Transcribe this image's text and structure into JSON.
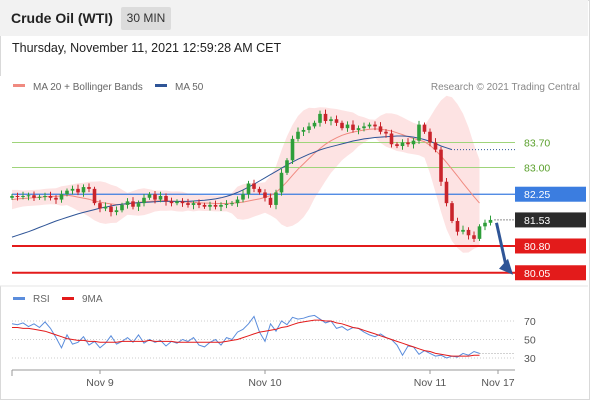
{
  "header": {
    "instrument": "Crude Oil (WTI)",
    "timeframe": "30 MIN"
  },
  "timestamp": "Thursday, November 11, 2021 12:59:28 AM CET",
  "attribution": "Research © 2021 Trading Central",
  "colors": {
    "ma20": "#f08a80",
    "bollinger_fill": "#fde3e3",
    "ma50": "#2f5597",
    "candle_up": "#2e9e3a",
    "candle_down": "#c9242b",
    "resistance": "#9fd47a",
    "pivot": "#3b7de0",
    "support": "#e31b1b",
    "rsi": "#5b8ddc",
    "rsi_ma": "#e31b1b",
    "arrow": "#2f5597"
  },
  "chart_data": [
    {
      "type": "candlestick",
      "title": "Crude Oil (WTI)",
      "timeframe": "30 MIN",
      "legend": [
        "MA 20 + Bollinger Bands",
        "MA 50"
      ],
      "legend_position": "top-left",
      "x_ticks": [
        "Nov 9",
        "Nov 10",
        "Nov 11",
        "Nov 17"
      ],
      "ylim": [
        79.7,
        84.6
      ],
      "levels": [
        {
          "label": "83.70",
          "value": 83.7,
          "role": "resistance"
        },
        {
          "label": "83.00",
          "value": 83.0,
          "role": "resistance"
        },
        {
          "label": "82.25",
          "value": 82.25,
          "role": "pivot"
        },
        {
          "label": "81.53",
          "value": 81.53,
          "role": "last price"
        },
        {
          "label": "80.80",
          "value": 80.8,
          "role": "support"
        },
        {
          "label": "80.05",
          "value": 80.05,
          "role": "support"
        }
      ],
      "close": [
        82.2,
        82.18,
        82.2,
        82.22,
        82.15,
        82.18,
        82.2,
        82.15,
        82.1,
        82.25,
        82.35,
        82.4,
        82.3,
        82.45,
        82.4,
        82.0,
        81.85,
        81.9,
        81.75,
        81.8,
        81.95,
        82.05,
        81.9,
        82.0,
        82.15,
        82.25,
        82.1,
        82.2,
        82.05,
        82.0,
        82.05,
        82.0,
        81.95,
        82.0,
        81.95,
        81.9,
        81.95,
        81.9,
        81.95,
        81.98,
        82.0,
        82.1,
        82.25,
        82.55,
        82.4,
        82.3,
        82.15,
        81.95,
        82.3,
        82.85,
        83.2,
        83.8,
        84.0,
        84.05,
        84.15,
        84.25,
        84.5,
        84.3,
        84.35,
        84.25,
        84.1,
        84.2,
        84.05,
        84.1,
        84.15,
        84.2,
        84.15,
        84.0,
        83.95,
        83.65,
        83.6,
        83.7,
        83.65,
        83.75,
        84.2,
        84.0,
        83.7,
        83.5,
        82.6,
        82.0,
        81.5,
        81.2,
        81.25,
        81.1,
        81.0,
        81.35,
        81.45,
        81.53
      ],
      "ma20": [
        82.1,
        82.12,
        82.13,
        82.14,
        82.15,
        82.16,
        82.18,
        82.19,
        82.19,
        82.2,
        82.22,
        82.2,
        82.17,
        82.14,
        82.11,
        82.06,
        82.03,
        82.0,
        81.98,
        81.96,
        81.97,
        81.98,
        82.0,
        82.02,
        82.04,
        82.05,
        82.06,
        82.07,
        82.07,
        82.06,
        82.05,
        82.04,
        82.03,
        82.02,
        82.01,
        82.0,
        82.0,
        81.99,
        81.99,
        81.99,
        82.0,
        82.01,
        82.03,
        82.06,
        82.09,
        82.12,
        82.16,
        82.21,
        82.3,
        82.44,
        82.6,
        82.78,
        82.95,
        83.1,
        83.25,
        83.4,
        83.53,
        83.65,
        83.75,
        83.83,
        83.9,
        83.95,
        83.99,
        84.02,
        84.05,
        84.07,
        84.08,
        84.07,
        84.05,
        84.02,
        83.97,
        83.92,
        83.86,
        83.81,
        83.77,
        83.72,
        83.62,
        83.48,
        83.32,
        83.14,
        82.95,
        82.76,
        82.56,
        82.37,
        82.18,
        82.0
      ],
      "ma50": [
        81.05,
        81.1,
        81.15,
        81.2,
        81.26,
        81.32,
        81.38,
        81.44,
        81.5,
        81.55,
        81.6,
        81.65,
        81.7,
        81.74,
        81.78,
        81.82,
        81.86,
        81.89,
        81.92,
        81.95,
        81.97,
        81.99,
        82.0,
        82.01,
        82.02,
        82.03,
        82.04,
        82.05,
        82.05,
        82.05,
        82.05,
        82.05,
        82.05,
        82.06,
        82.07,
        82.08,
        82.1,
        82.12,
        82.15,
        82.19,
        82.24,
        82.3,
        82.37,
        82.45,
        82.53,
        82.62,
        82.71,
        82.8,
        82.89,
        82.98,
        83.07,
        83.15,
        83.23,
        83.3,
        83.37,
        83.43,
        83.49,
        83.54,
        83.58,
        83.62,
        83.66,
        83.7,
        83.74,
        83.77,
        83.8,
        83.82,
        83.84,
        83.85,
        83.86,
        83.87,
        83.88,
        83.88,
        83.87,
        83.85,
        83.82,
        83.78,
        83.73,
        83.67,
        83.6,
        83.55,
        83.5
      ]
    },
    {
      "type": "line",
      "legend": [
        "RSI",
        "9MA"
      ],
      "y_ticks": [
        70,
        50,
        30
      ],
      "ylim": [
        15,
        85
      ],
      "series": [
        {
          "name": "RSI",
          "values": [
            67,
            66,
            68,
            64,
            67,
            63,
            69,
            62,
            52,
            41,
            55,
            45,
            47,
            53,
            44,
            48,
            41,
            46,
            54,
            45,
            48,
            52,
            47,
            55,
            46,
            50,
            47,
            49,
            43,
            48,
            46,
            50,
            48,
            52,
            44,
            42,
            47,
            50,
            44,
            52,
            50,
            58,
            61,
            67,
            75,
            58,
            48,
            67,
            59,
            70,
            66,
            74,
            72,
            73,
            75,
            76,
            72,
            68,
            70,
            62,
            64,
            60,
            63,
            62,
            58,
            55,
            53,
            56,
            52,
            50,
            44,
            33,
            43,
            42,
            34,
            38,
            35,
            32,
            33,
            30,
            32,
            31,
            35,
            33,
            37,
            35
          ]
        },
        {
          "name": "9MA",
          "values": [
            63,
            63,
            62,
            62,
            61,
            60,
            59,
            57,
            55,
            53,
            51,
            50,
            49,
            49,
            48,
            48,
            47,
            47,
            47,
            47,
            48,
            48,
            48,
            48,
            48,
            49,
            48,
            48,
            48,
            48,
            47,
            47,
            47,
            47,
            47,
            47,
            47,
            47,
            47,
            48,
            49,
            50,
            52,
            54,
            56,
            58,
            59,
            60,
            61,
            63,
            64,
            66,
            68,
            69,
            70,
            71,
            71,
            70,
            70,
            68,
            67,
            65,
            63,
            62,
            60,
            58,
            56,
            54,
            52,
            50,
            48,
            46,
            44,
            42,
            40,
            38,
            37,
            35,
            34,
            33,
            32,
            32,
            32,
            32,
            33,
            33
          ]
        }
      ]
    }
  ]
}
